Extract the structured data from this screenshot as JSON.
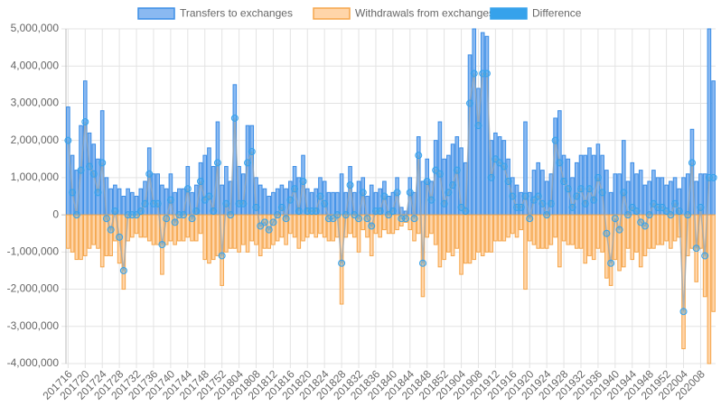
{
  "chart_data": {
    "type": "bar-line",
    "categories": [
      "201716",
      null,
      null,
      null,
      "201720",
      null,
      null,
      null,
      "201724",
      null,
      null,
      null,
      "201728",
      null,
      null,
      null,
      "201732",
      null,
      null,
      null,
      "201736",
      null,
      null,
      null,
      "201740",
      null,
      null,
      null,
      "201744",
      null,
      null,
      null,
      "201748",
      null,
      null,
      null,
      "201752",
      null,
      null,
      null,
      "201804",
      null,
      null,
      null,
      "201808",
      null,
      null,
      null,
      "201812",
      null,
      null,
      null,
      "201816",
      null,
      null,
      null,
      "201820",
      null,
      null,
      null,
      "201824",
      null,
      null,
      null,
      "201828",
      null,
      null,
      null,
      "201832",
      null,
      null,
      null,
      "201836",
      null,
      null,
      null,
      "201840",
      null,
      null,
      null,
      "201844",
      null,
      null,
      null,
      "201848",
      null,
      null,
      null,
      "201852",
      null,
      null,
      null,
      "201904",
      null,
      null,
      null,
      "201908",
      null,
      null,
      null,
      "201912",
      null,
      null,
      null,
      "201916",
      null,
      null,
      null,
      "201920",
      null,
      null,
      null,
      "201924",
      null,
      null,
      null,
      "201928",
      null,
      null,
      null,
      "201932",
      null,
      null,
      null,
      "201936",
      null,
      null,
      null,
      "201940",
      null,
      null,
      null,
      "201944",
      null,
      null,
      null,
      "201948",
      null,
      null,
      null,
      "201952",
      null,
      null,
      null,
      "202004",
      null,
      null,
      null,
      "202008",
      null,
      null,
      null
    ],
    "series": [
      {
        "name": "Transfers to exchanges",
        "kind": "bar",
        "color": "#8ab9f1",
        "border": "#3b8de6",
        "values": [
          2900000,
          1600000,
          1200000,
          2400000,
          3600000,
          2200000,
          1900000,
          1500000,
          2800000,
          1000000,
          700000,
          800000,
          700000,
          500000,
          700000,
          600000,
          500000,
          700000,
          900000,
          1800000,
          1100000,
          1100000,
          800000,
          700000,
          1100000,
          600000,
          700000,
          700000,
          1300000,
          600000,
          800000,
          1400000,
          1600000,
          1800000,
          1300000,
          2500000,
          800000,
          1300000,
          900000,
          3500000,
          1300000,
          1100000,
          2400000,
          2400000,
          1000000,
          800000,
          700000,
          500000,
          600000,
          700000,
          800000,
          700000,
          900000,
          1300000,
          1000000,
          1600000,
          700000,
          600000,
          700000,
          1000000,
          900000,
          600000,
          600000,
          600000,
          1100000,
          600000,
          1300000,
          600000,
          900000,
          1000000,
          500000,
          800000,
          600000,
          700000,
          900000,
          500000,
          600000,
          1000000,
          200000,
          100000,
          1000000,
          600000,
          2100000,
          900000,
          1500000,
          900000,
          2000000,
          2500000,
          1500000,
          1600000,
          1900000,
          2100000,
          1800000,
          1400000,
          4300000,
          5000000,
          3400000,
          4900000,
          4800000,
          2000000,
          2200000,
          2100000,
          2000000,
          1500000,
          1000000,
          800000,
          600000,
          2500000,
          600000,
          1200000,
          1400000,
          1200000,
          900000,
          1100000,
          2600000,
          2800000,
          1600000,
          1500000,
          1000000,
          1400000,
          1600000,
          1600000,
          1800000,
          1600000,
          1900000,
          1600000,
          1200000,
          600000,
          1100000,
          1100000,
          2000000,
          900000,
          1400000,
          1100000,
          1200000,
          800000,
          900000,
          1200000,
          1000000,
          1000000,
          800000,
          900000,
          1000000,
          700000,
          1000000,
          1100000,
          2300000,
          900000,
          1100000,
          1100000,
          5000000,
          3600000
        ]
      },
      {
        "name": "Withdrawals from exchanges",
        "kind": "bar",
        "color": "#ffd5a9",
        "border": "#f5a54a",
        "values": [
          -900000,
          -1000000,
          -1200000,
          -1200000,
          -1100000,
          -900000,
          -800000,
          -900000,
          -1400000,
          -1100000,
          -1100000,
          -700000,
          -1300000,
          -2000000,
          -700000,
          -600000,
          -500000,
          -600000,
          -600000,
          -700000,
          -800000,
          -800000,
          -1600000,
          -800000,
          -700000,
          -800000,
          -700000,
          -700000,
          -600000,
          -700000,
          -700000,
          -500000,
          -1200000,
          -1300000,
          -1200000,
          -1100000,
          -1900000,
          -1000000,
          -900000,
          -900000,
          -1000000,
          -800000,
          -1000000,
          -700000,
          -800000,
          -1100000,
          -900000,
          -900000,
          -800000,
          -700000,
          -600000,
          -800000,
          -500000,
          -600000,
          -900000,
          -700000,
          -600000,
          -500000,
          -600000,
          -500000,
          -600000,
          -700000,
          -700000,
          -600000,
          -2400000,
          -600000,
          -500000,
          -600000,
          -1000000,
          -400000,
          -600000,
          -1100000,
          -500000,
          -600000,
          -400000,
          -500000,
          -500000,
          -400000,
          -300000,
          -200000,
          -400000,
          -700000,
          -500000,
          -2200000,
          -600000,
          -500000,
          -800000,
          -1400000,
          -1200000,
          -1000000,
          -1100000,
          -900000,
          -1600000,
          -1300000,
          -1300000,
          -1200000,
          -1000000,
          -1100000,
          -1000000,
          -1000000,
          -700000,
          -700000,
          -700000,
          -600000,
          -500000,
          -600000,
          -400000,
          -2000000,
          -700000,
          -800000,
          -900000,
          -900000,
          -900000,
          -800000,
          -600000,
          -1400000,
          -700000,
          -800000,
          -800000,
          -900000,
          -900000,
          -1300000,
          -1100000,
          -1200000,
          -900000,
          -1000000,
          -1700000,
          -1900000,
          -1200000,
          -1500000,
          -1400000,
          -900000,
          -1200000,
          -1000000,
          -1400000,
          -1100000,
          -900000,
          -900000,
          -800000,
          -800000,
          -700000,
          -900000,
          -700000,
          -600000,
          -3600000,
          -1100000,
          -900000,
          -1800000,
          -900000,
          -2200000,
          -4000000,
          -2600000
        ]
      },
      {
        "name": "Difference",
        "kind": "line",
        "color": "#36a2eb",
        "values": [
          2000000,
          600000,
          0,
          1200000,
          2500000,
          1300000,
          1100000,
          600000,
          1400000,
          -100000,
          -400000,
          100000,
          -600000,
          -1500000,
          0,
          0,
          0,
          100000,
          300000,
          1100000,
          300000,
          300000,
          -800000,
          -100000,
          400000,
          -200000,
          0,
          0,
          700000,
          -100000,
          100000,
          900000,
          400000,
          500000,
          100000,
          1400000,
          -1100000,
          300000,
          0,
          2600000,
          300000,
          300000,
          1400000,
          1700000,
          200000,
          -300000,
          -200000,
          -400000,
          -200000,
          0,
          200000,
          -100000,
          400000,
          700000,
          100000,
          900000,
          100000,
          100000,
          100000,
          500000,
          300000,
          -100000,
          -100000,
          0,
          -1300000,
          0,
          800000,
          0,
          -100000,
          600000,
          -100000,
          -300000,
          100000,
          100000,
          500000,
          0,
          100000,
          600000,
          -100000,
          -100000,
          600000,
          -100000,
          1600000,
          -1300000,
          900000,
          400000,
          1200000,
          1100000,
          300000,
          600000,
          800000,
          1200000,
          200000,
          100000,
          3000000,
          3800000,
          2400000,
          3800000,
          3800000,
          1000000,
          1500000,
          1400000,
          1300000,
          900000,
          500000,
          200000,
          200000,
          500000,
          -100000,
          400000,
          500000,
          300000,
          0,
          300000,
          2000000,
          1400000,
          900000,
          700000,
          200000,
          500000,
          700000,
          300000,
          700000,
          400000,
          1000000,
          600000,
          -500000,
          -1300000,
          -100000,
          -400000,
          600000,
          0,
          200000,
          100000,
          -200000,
          -300000,
          0,
          300000,
          200000,
          200000,
          100000,
          0,
          300000,
          100000,
          -2600000,
          0,
          1400000,
          -900000,
          200000,
          -1100000,
          1000000,
          1000000
        ]
      }
    ],
    "ylim": [
      -4000000,
      5000000
    ],
    "yticks": [
      {
        "value": 5000000,
        "label": "5,000,000"
      },
      {
        "value": 4000000,
        "label": "4,000,000"
      },
      {
        "value": 3000000,
        "label": "3,000,000"
      },
      {
        "value": 2000000,
        "label": "2,000,000"
      },
      {
        "value": 1000000,
        "label": "1,000,000"
      },
      0,
      {
        "value": -1000000,
        "label": "-1,000,000"
      },
      {
        "value": -2000000,
        "label": "-2,000,000"
      },
      {
        "value": -3000000,
        "label": "-3,000,000"
      },
      {
        "value": -4000000,
        "label": "-4,000,000"
      }
    ],
    "grid": true,
    "legend": "top"
  }
}
